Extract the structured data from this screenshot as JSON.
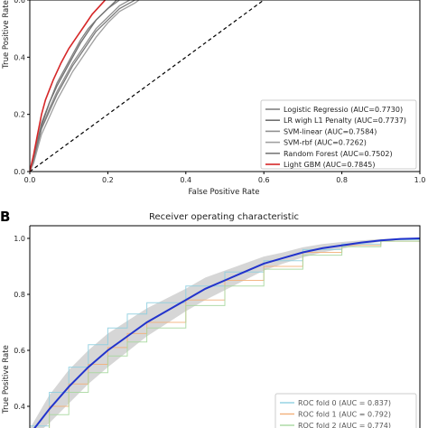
{
  "chart_data": [
    {
      "panel": "",
      "type": "line",
      "title": "",
      "xlabel": "False Positive Rate",
      "ylabel": "True Positive Rate",
      "xlim": [
        0,
        1
      ],
      "ylim": [
        0,
        0.6
      ],
      "xticks": [
        "0.0",
        "0.2",
        "0.4",
        "0.6",
        "0.8",
        "1.0"
      ],
      "yticks": [
        "0.0",
        "0.2",
        "0.4",
        "0.6"
      ],
      "legend_position": "lower-right",
      "chance_line": true,
      "series": [
        {
          "name": "Logistic Regressio (AUC=0.7730)",
          "color": "#808080",
          "x": [
            0,
            0.01,
            0.02,
            0.03,
            0.05,
            0.07,
            0.09,
            0.11,
            0.13,
            0.15,
            0.17,
            0.2,
            0.23,
            0.27,
            0.3
          ],
          "y": [
            0,
            0.05,
            0.11,
            0.17,
            0.24,
            0.31,
            0.36,
            0.41,
            0.46,
            0.5,
            0.53,
            0.57,
            0.6,
            0.63,
            0.65
          ]
        },
        {
          "name": "LR wigh L1 Penalty (AUC=0.7737)",
          "color": "#707070",
          "x": [
            0,
            0.01,
            0.02,
            0.03,
            0.05,
            0.07,
            0.09,
            0.11,
            0.13,
            0.15,
            0.17,
            0.2,
            0.23,
            0.27,
            0.3
          ],
          "y": [
            0,
            0.05,
            0.1,
            0.16,
            0.24,
            0.3,
            0.35,
            0.4,
            0.45,
            0.49,
            0.53,
            0.57,
            0.61,
            0.64,
            0.66
          ]
        },
        {
          "name": "SVM-linear (AUC=0.7584)",
          "color": "#909090",
          "x": [
            0,
            0.01,
            0.02,
            0.03,
            0.05,
            0.07,
            0.09,
            0.11,
            0.13,
            0.15,
            0.17,
            0.2,
            0.23,
            0.27,
            0.3
          ],
          "y": [
            0,
            0.04,
            0.09,
            0.15,
            0.22,
            0.28,
            0.33,
            0.38,
            0.42,
            0.46,
            0.5,
            0.54,
            0.58,
            0.61,
            0.63
          ]
        },
        {
          "name": "SVM-rbf (AUC=0.7262)",
          "color": "#a0a0a0",
          "x": [
            0,
            0.01,
            0.02,
            0.03,
            0.05,
            0.07,
            0.09,
            0.11,
            0.13,
            0.15,
            0.17,
            0.2,
            0.23,
            0.27,
            0.3
          ],
          "y": [
            0,
            0.03,
            0.08,
            0.13,
            0.19,
            0.25,
            0.3,
            0.35,
            0.39,
            0.43,
            0.47,
            0.52,
            0.56,
            0.59,
            0.62
          ]
        },
        {
          "name": "Random Forest (AUC=0.7502)",
          "color": "#7a7a7a",
          "x": [
            0,
            0.01,
            0.02,
            0.03,
            0.05,
            0.07,
            0.09,
            0.11,
            0.13,
            0.15,
            0.17,
            0.2,
            0.23,
            0.27,
            0.3
          ],
          "y": [
            0,
            0.04,
            0.1,
            0.15,
            0.21,
            0.27,
            0.32,
            0.37,
            0.41,
            0.45,
            0.49,
            0.53,
            0.57,
            0.6,
            0.63
          ]
        },
        {
          "name": "Light GBM (AUC=0.7845)",
          "color": "#d62728",
          "x": [
            0,
            0.01,
            0.02,
            0.03,
            0.04,
            0.06,
            0.08,
            0.1,
            0.12,
            0.14,
            0.16,
            0.18,
            0.2
          ],
          "y": [
            0,
            0.06,
            0.13,
            0.2,
            0.25,
            0.32,
            0.38,
            0.43,
            0.47,
            0.51,
            0.55,
            0.58,
            0.61
          ]
        }
      ]
    },
    {
      "panel": "B",
      "type": "line",
      "title": "Receiver operating characteristic",
      "xlabel": "",
      "ylabel": "True Positive Rate",
      "xlim": [
        0,
        1
      ],
      "ylim": [
        0.37,
        1.0
      ],
      "yticks": [
        "1.0",
        "0.8",
        "0.6",
        "0.4"
      ],
      "ytick_values": [
        1.0,
        0.8,
        0.6,
        0.4
      ],
      "legend_position": "lower-right",
      "mean_color": "#2233cc",
      "band_color": "#c8c8c8",
      "mean": {
        "x": [
          0,
          0.05,
          0.1,
          0.15,
          0.2,
          0.25,
          0.3,
          0.35,
          0.4,
          0.45,
          0.5,
          0.55,
          0.6,
          0.65,
          0.7,
          0.75,
          0.8,
          0.85,
          0.9,
          0.95,
          1.0
        ],
        "y": [
          0.3,
          0.39,
          0.47,
          0.54,
          0.6,
          0.65,
          0.7,
          0.74,
          0.78,
          0.82,
          0.85,
          0.88,
          0.91,
          0.93,
          0.95,
          0.965,
          0.975,
          0.985,
          0.993,
          0.998,
          1.0
        ],
        "std": [
          0.02,
          0.05,
          0.06,
          0.06,
          0.06,
          0.055,
          0.05,
          0.045,
          0.04,
          0.04,
          0.035,
          0.03,
          0.025,
          0.02,
          0.018,
          0.015,
          0.012,
          0.008,
          0.005,
          0.002,
          0
        ]
      },
      "series": [
        {
          "name": "ROC fold 0 (AUC = 0.837)",
          "color": "#8fcfe0",
          "x": [
            0,
            0.05,
            0.1,
            0.15,
            0.2,
            0.25,
            0.3,
            0.4,
            0.5,
            0.6,
            0.7,
            0.8,
            0.9,
            1.0
          ],
          "y": [
            0.33,
            0.45,
            0.54,
            0.62,
            0.68,
            0.73,
            0.77,
            0.83,
            0.88,
            0.92,
            0.96,
            0.98,
            0.995,
            1.0
          ]
        },
        {
          "name": "ROC fold 1 (AUC = 0.792)",
          "color": "#f3b07a",
          "x": [
            0,
            0.05,
            0.1,
            0.15,
            0.2,
            0.25,
            0.3,
            0.4,
            0.5,
            0.6,
            0.7,
            0.8,
            0.9,
            1.0
          ],
          "y": [
            0.3,
            0.4,
            0.48,
            0.55,
            0.61,
            0.66,
            0.7,
            0.78,
            0.85,
            0.9,
            0.95,
            0.975,
            0.99,
            1.0
          ]
        },
        {
          "name": "ROC fold 2 (AUC = 0.774)",
          "color": "#a8d8a0",
          "x": [
            0,
            0.05,
            0.1,
            0.15,
            0.2,
            0.25,
            0.3,
            0.4,
            0.5,
            0.6,
            0.7,
            0.8,
            0.9,
            1.0
          ],
          "y": [
            0.29,
            0.37,
            0.45,
            0.52,
            0.58,
            0.63,
            0.68,
            0.76,
            0.83,
            0.89,
            0.94,
            0.97,
            0.99,
            1.0
          ]
        }
      ]
    }
  ]
}
